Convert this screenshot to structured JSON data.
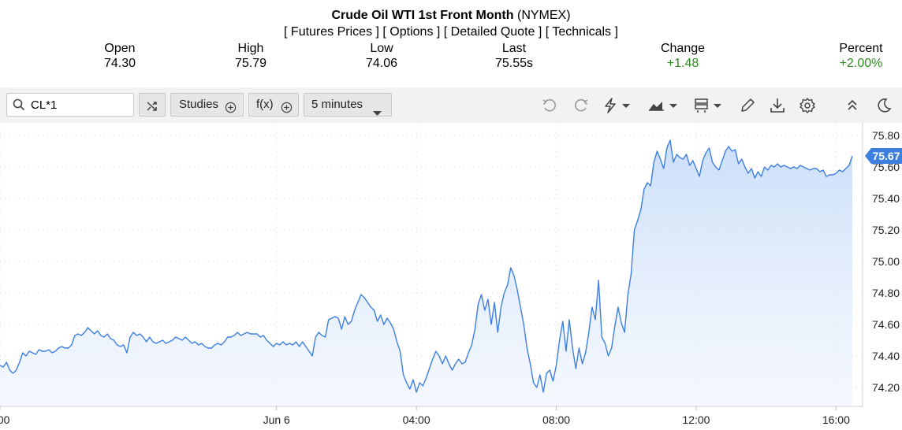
{
  "header": {
    "title_bold": "Crude Oil WTI 1st Front Month",
    "title_exchange": "(NYMEX)",
    "links": [
      "[ Futures Prices ]",
      "[ Options ]",
      "[ Detailed Quote ]",
      "[ Technicals ]"
    ]
  },
  "quote": {
    "open_label": "Open",
    "open": "74.30",
    "high_label": "High",
    "high": "75.79",
    "low_label": "Low",
    "low": "74.06",
    "last_label": "Last",
    "last": "75.55s",
    "change_label": "Change",
    "change": "+1.48",
    "percent_label": "Percent",
    "percent": "+2.00%",
    "positive_color": "#2e8b1f"
  },
  "toolbar": {
    "symbol": "CL*1",
    "studies_label": "Studies",
    "fx_label": "f(x)",
    "interval_label": "5 minutes",
    "icons": [
      "search-icon",
      "shuffle-icon",
      "plus-circle-icon",
      "undo-icon",
      "redo-icon",
      "lightning-icon",
      "chart-type-icon",
      "layout-icon",
      "pencil-icon",
      "download-icon",
      "gear-icon",
      "collapse-icon",
      "theme-icon"
    ]
  },
  "chart_data": {
    "type": "area",
    "title": "",
    "xlabel": "",
    "ylabel": "",
    "x_tick_labels": [
      ":00",
      "Jun 6",
      "04:00",
      "08:00",
      "12:00",
      "16:00"
    ],
    "x_tick_positions": [
      0,
      85,
      128,
      171,
      214,
      257
    ],
    "y_tick_labels": [
      "75.80",
      "75.60",
      "75.40",
      "75.20",
      "75.00",
      "74.80",
      "74.60",
      "74.40",
      "74.20"
    ],
    "ylim": [
      74.08,
      75.88
    ],
    "last_value_label": "75.67",
    "line_color": "#3d7fe0",
    "fill_color": "#dbe8fb",
    "grid": "dotted",
    "values": [
      74.34,
      74.33,
      74.36,
      74.31,
      74.29,
      74.31,
      74.36,
      74.42,
      74.4,
      74.43,
      74.42,
      74.41,
      74.44,
      74.43,
      74.43,
      74.44,
      74.42,
      74.43,
      74.45,
      74.46,
      74.45,
      74.45,
      74.47,
      74.53,
      74.54,
      74.53,
      74.55,
      74.58,
      74.56,
      74.54,
      74.56,
      74.53,
      74.52,
      74.54,
      74.51,
      74.5,
      74.47,
      74.46,
      74.47,
      74.42,
      74.52,
      74.55,
      74.53,
      74.54,
      74.52,
      74.49,
      74.52,
      74.49,
      74.48,
      74.49,
      74.5,
      74.48,
      74.49,
      74.5,
      74.52,
      74.51,
      74.5,
      74.52,
      74.5,
      74.48,
      74.49,
      74.47,
      74.48,
      74.46,
      74.45,
      74.45,
      74.47,
      74.48,
      74.47,
      74.49,
      74.52,
      74.52,
      74.53,
      74.55,
      74.53,
      74.54,
      74.55,
      74.54,
      74.54,
      74.54,
      74.52,
      74.53,
      74.5,
      74.48,
      74.46,
      74.48,
      74.47,
      74.49,
      74.47,
      74.48,
      74.47,
      74.49,
      74.46,
      74.49,
      74.46,
      74.43,
      74.4,
      74.52,
      74.55,
      74.53,
      74.52,
      74.63,
      74.64,
      74.65,
      74.64,
      74.57,
      74.65,
      74.6,
      74.62,
      74.69,
      74.74,
      74.79,
      74.77,
      74.74,
      74.71,
      74.69,
      74.62,
      74.66,
      74.6,
      74.64,
      74.61,
      74.57,
      74.49,
      74.43,
      74.28,
      74.23,
      74.19,
      74.25,
      74.17,
      74.23,
      74.21,
      74.26,
      74.32,
      74.38,
      74.43,
      74.4,
      74.35,
      74.4,
      74.35,
      74.31,
      74.35,
      74.38,
      74.35,
      74.36,
      74.42,
      74.47,
      74.57,
      74.73,
      74.79,
      74.69,
      74.76,
      74.6,
      74.74,
      74.55,
      74.71,
      74.8,
      74.85,
      74.96,
      74.91,
      74.82,
      74.71,
      74.6,
      74.45,
      74.35,
      74.23,
      74.2,
      74.28,
      74.17,
      74.29,
      74.31,
      74.24,
      74.34,
      74.5,
      74.62,
      74.43,
      74.63,
      74.45,
      74.32,
      74.45,
      74.35,
      74.42,
      74.55,
      74.71,
      74.63,
      74.88,
      74.52,
      74.48,
      74.4,
      74.45,
      74.59,
      74.71,
      74.61,
      74.55,
      74.79,
      74.92,
      75.2,
      75.26,
      75.33,
      75.46,
      75.5,
      75.48,
      75.63,
      75.7,
      75.65,
      75.59,
      75.72,
      75.77,
      75.63,
      75.68,
      75.66,
      75.65,
      75.68,
      75.61,
      75.64,
      75.59,
      75.54,
      75.64,
      75.69,
      75.72,
      75.63,
      75.6,
      75.58,
      75.64,
      75.7,
      75.73,
      75.7,
      75.71,
      75.62,
      75.65,
      75.6,
      75.56,
      75.59,
      75.53,
      75.57,
      75.54,
      75.6,
      75.58,
      75.61,
      75.6,
      75.62,
      75.6,
      75.61,
      75.6,
      75.59,
      75.6,
      75.59,
      75.61,
      75.6,
      75.59,
      75.58,
      75.59,
      75.59,
      75.57,
      75.58,
      75.54,
      75.55,
      75.55,
      75.56,
      75.58,
      75.57,
      75.59,
      75.61,
      75.67
    ]
  }
}
